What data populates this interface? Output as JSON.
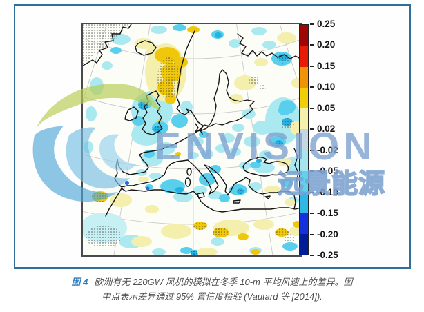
{
  "watermark": {
    "brand_text": "ENVISION",
    "brand_text_cn": "远景能源",
    "color": "#7EA2D0"
  },
  "figure_frame": {
    "border_color": "#2F6F99"
  },
  "colorbar": {
    "tick_labels": [
      "0.25",
      "0.20",
      "0.15",
      "0.10",
      "0.05",
      "0.02",
      "-0.02",
      "-0.05",
      "-0.10",
      "-0.15",
      "-0.20",
      "-0.25"
    ],
    "segment_colors_top_to_bottom": [
      "#9E0505",
      "#E81C06",
      "#F09307",
      "#F0CF08",
      "#F5F0AC",
      "#C4D7E2",
      "#A8E4EC",
      "#60D2EC",
      "#2FB8E6",
      "#1430DF",
      "#001C96"
    ]
  },
  "caption": {
    "figure_label": "图 4",
    "line1": "欧洲有无 220GW 风机的模拟在冬季 10-m 平均风速上的差异。图",
    "line2": "中点表示差异通过 95% 置信度检验 (Vautard 等 [2014])."
  },
  "chart_data": {
    "type": "heatmap",
    "title": "欧洲有无 220GW 风机的模拟在冬季 10-m 平均风速上的差异",
    "subtitle": "中点表示差异通过 95% 置信度检验 (Vautard 等 [2014])",
    "region": "Europe and North Africa (polar-stereographic style map)",
    "units": "10-m 平均风速差异 (m/s)",
    "legend_position": "right",
    "colorbar_tick_values": [
      0.25,
      0.2,
      0.15,
      0.1,
      0.05,
      0.02,
      -0.02,
      -0.05,
      -0.1,
      -0.15,
      -0.2,
      -0.25
    ],
    "colorbar_colors_top_to_bottom": [
      "#9E0505",
      "#E81C06",
      "#F09307",
      "#F0CF08",
      "#F5F0AC",
      "#C4D7E2",
      "#A8E4EC",
      "#60D2EC",
      "#2FB8E6",
      "#1430DF",
      "#001C96"
    ],
    "notable_patterns": [
      {
        "area": "Norwegian Sea (offshore Norway)",
        "value_range": "+0.05 to +0.10",
        "stippled": true
      },
      {
        "area": "British Isles, North Sea, Bay of Biscay",
        "value_range": "-0.02 to -0.10",
        "stippled": true
      },
      {
        "area": "Central and Eastern Europe, western Russia",
        "value_range": "-0.02 to -0.10",
        "stippled": true
      },
      {
        "area": "Western and central Mediterranean, Aegean, Black Sea",
        "value_range": "-0.02 to -0.10"
      },
      {
        "area": "Sahara / North Africa interior",
        "value_range": "+0.02 to +0.10",
        "stippled": true
      },
      {
        "area": "Subtropical Atlantic (south-west corner)",
        "value_range": "-0.02 to -0.05",
        "stippled": true
      }
    ]
  }
}
